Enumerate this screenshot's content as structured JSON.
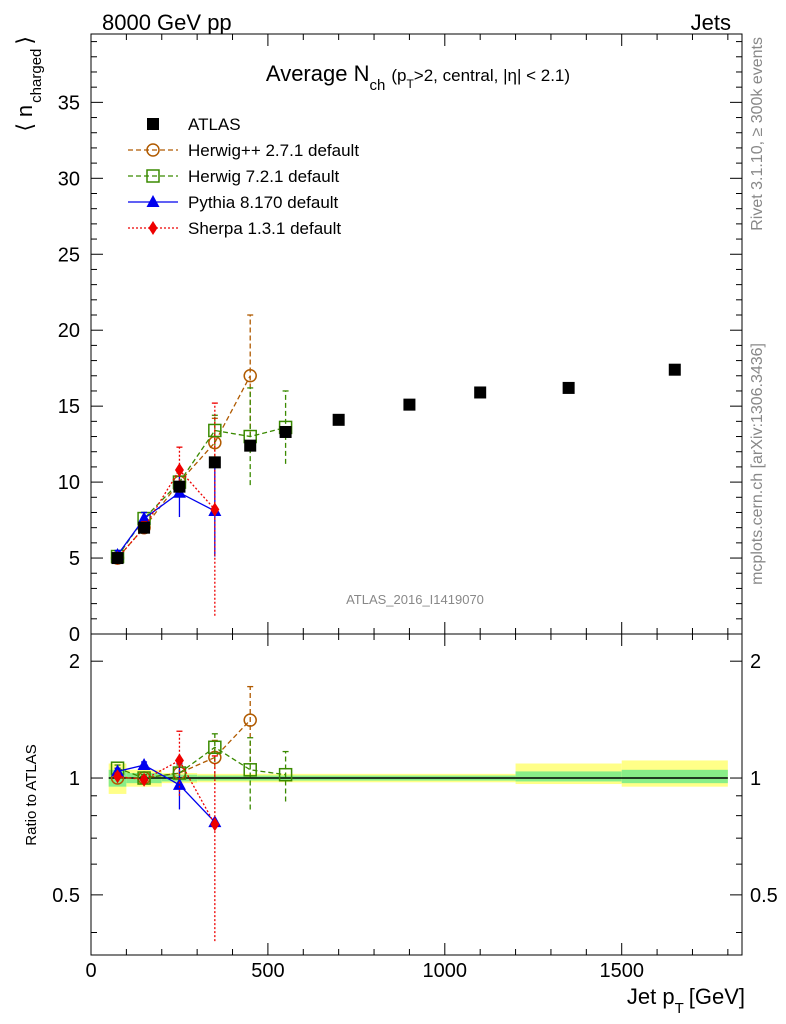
{
  "header": {
    "left": "8000 GeV pp",
    "right": "Jets"
  },
  "side_labels": {
    "rivet": "Rivet 3.1.10, ≥ 300k events",
    "mcplots": "mcplots.cern.ch [arXiv:1306.3436]"
  },
  "chart_data": [
    {
      "type": "scatter",
      "panel": "main",
      "title": "Average N_ch (p_T>2, central, |η| < 2.1)",
      "title_parts": {
        "main": "Average N",
        "sub1": "ch",
        "p1": "(p",
        "sub2": "T",
        "p2": ">2, central, |",
        "eta": "η",
        "p3": "| < 2.1)"
      },
      "ylabel": "⟨ n_charged ⟩",
      "ylabel_parts": {
        "open": "⟨",
        "n": "n",
        "sub": "charged",
        "close": "⟩"
      },
      "analysis_label": "ATLAS_2016_I1419070",
      "xlim": [
        0,
        1840
      ],
      "ylim": [
        0,
        39.5
      ],
      "yticks": [
        0,
        5,
        10,
        15,
        20,
        25,
        30,
        35
      ],
      "ytick_labels": [
        "0",
        "5",
        "10",
        "15",
        "20",
        "25",
        "30",
        "35"
      ],
      "legend_position": "top-left",
      "series": [
        {
          "name": "ATLAS",
          "color": "#000000",
          "style": "square-filled",
          "x": [
            75,
            150,
            250,
            350,
            450,
            550,
            700,
            900,
            1100,
            1350,
            1650
          ],
          "y": [
            5.0,
            7.0,
            9.7,
            11.3,
            12.4,
            13.3,
            14.1,
            15.1,
            15.9,
            16.2,
            17.4
          ]
        },
        {
          "name": "Herwig++ 2.7.1 default",
          "color": "#b05a00",
          "style": "circle-open",
          "line": "dashed",
          "x": [
            75,
            150,
            250,
            350,
            450
          ],
          "y": [
            5.0,
            7.0,
            10.0,
            12.6,
            17.0
          ],
          "err": [
            0.3,
            0.4,
            0.8,
            1.6,
            4.0
          ]
        },
        {
          "name": "Herwig 7.2.1 default",
          "color": "#3a8a00",
          "style": "square-open",
          "line": "dashed",
          "x": [
            75,
            150,
            250,
            350,
            450,
            550
          ],
          "y": [
            5.1,
            7.6,
            10.0,
            13.4,
            13.0,
            13.6
          ],
          "err": [
            0.3,
            0.4,
            0.6,
            1.0,
            3.2,
            2.4
          ]
        },
        {
          "name": "Pythia 8.170 default",
          "color": "#0000ee",
          "style": "triangle-filled",
          "line": "solid",
          "x": [
            75,
            150,
            250,
            350
          ],
          "y": [
            5.2,
            7.6,
            9.3,
            8.1
          ],
          "err": [
            0.3,
            0.4,
            1.6,
            3.0
          ]
        },
        {
          "name": "Sherpa 1.3.1 default",
          "color": "#ee0000",
          "style": "diamond-filled",
          "line": "dotted",
          "x": [
            75,
            150,
            250,
            350
          ],
          "y": [
            5.0,
            7.0,
            10.8,
            8.2
          ],
          "err": [
            0.3,
            0.4,
            1.5,
            7.0
          ]
        }
      ]
    },
    {
      "type": "scatter",
      "panel": "ratio",
      "ylabel": "Ratio to ATLAS",
      "xlabel": "Jet p_T [GeV]",
      "xlabel_parts": {
        "main": "Jet p",
        "sub": "T",
        "unit": "[GeV]"
      },
      "xlim": [
        0,
        1840
      ],
      "ylim": [
        0.35,
        2.35
      ],
      "y_scale": "log",
      "xticks": [
        0,
        500,
        1000,
        1500
      ],
      "xtick_labels": [
        "0",
        "500",
        "1000",
        "1500"
      ],
      "yticks": [
        0.5,
        1,
        2
      ],
      "ytick_labels": [
        "0.5",
        "1",
        "2"
      ],
      "reference_line": 1,
      "uncertainty_bands": [
        {
          "x": [
            50,
            100
          ],
          "inner": [
            0.95,
            1.05
          ],
          "outer": [
            0.91,
            1.09
          ]
        },
        {
          "x": [
            100,
            200
          ],
          "inner": [
            0.97,
            1.03
          ],
          "outer": [
            0.95,
            1.05
          ]
        },
        {
          "x": [
            200,
            300
          ],
          "inner": [
            0.98,
            1.02
          ],
          "outer": [
            0.97,
            1.03
          ]
        },
        {
          "x": [
            300,
            400
          ],
          "inner": [
            0.985,
            1.015
          ],
          "outer": [
            0.975,
            1.025
          ]
        },
        {
          "x": [
            400,
            1200
          ],
          "inner": [
            0.985,
            1.015
          ],
          "outer": [
            0.975,
            1.025
          ]
        },
        {
          "x": [
            1200,
            1500
          ],
          "inner": [
            0.98,
            1.04
          ],
          "outer": [
            0.965,
            1.09
          ]
        },
        {
          "x": [
            1500,
            1800
          ],
          "inner": [
            0.97,
            1.05
          ],
          "outer": [
            0.95,
            1.11
          ]
        }
      ],
      "series": [
        {
          "name": "Herwig++ 2.7.1 default",
          "color": "#b05a00",
          "style": "circle-open",
          "line": "dashed",
          "x": [
            75,
            150,
            250,
            350,
            450
          ],
          "y": [
            1.0,
            1.0,
            1.03,
            1.13,
            1.41
          ],
          "err": [
            0.02,
            0.02,
            0.06,
            0.12,
            0.31
          ]
        },
        {
          "name": "Herwig 7.2.1 default",
          "color": "#3a8a00",
          "style": "square-open",
          "line": "dashed",
          "x": [
            75,
            150,
            250,
            350,
            450,
            550
          ],
          "y": [
            1.06,
            1.0,
            1.03,
            1.2,
            1.05,
            1.02
          ],
          "err": [
            0.02,
            0.02,
            0.05,
            0.1,
            0.22,
            0.15
          ]
        },
        {
          "name": "Pythia 8.170 default",
          "color": "#0000ee",
          "style": "triangle-filled",
          "line": "solid",
          "x": [
            75,
            150,
            250,
            350
          ],
          "y": [
            1.04,
            1.08,
            0.96,
            0.77
          ],
          "err": [
            0.02,
            0.02,
            0.13,
            0.0
          ]
        },
        {
          "name": "Sherpa 1.3.1 default",
          "color": "#ee0000",
          "style": "diamond-filled",
          "line": "dotted",
          "x": [
            75,
            150,
            250,
            350
          ],
          "y": [
            1.01,
            0.99,
            1.11,
            0.76
          ],
          "err": [
            0.02,
            0.02,
            0.21,
            0.38
          ]
        }
      ]
    }
  ]
}
